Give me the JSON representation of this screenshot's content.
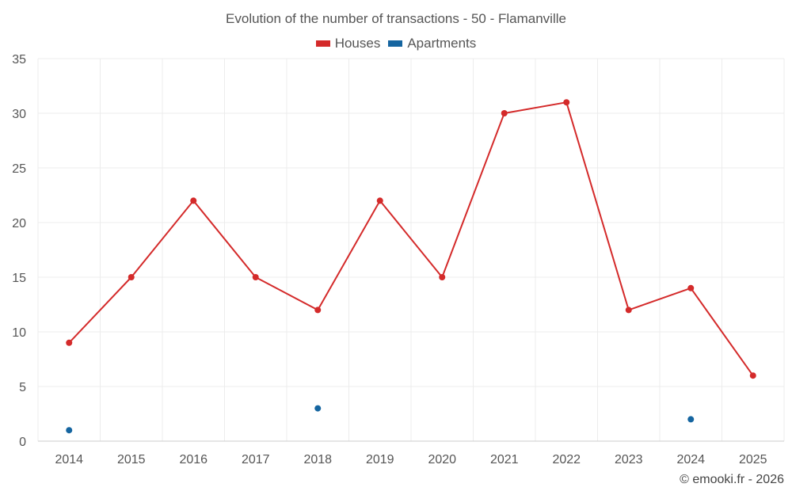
{
  "chart_data": {
    "type": "line",
    "title": "Evolution of the number of transactions - 50 - Flamanville",
    "categories": [
      "2014",
      "2015",
      "2016",
      "2017",
      "2018",
      "2019",
      "2020",
      "2021",
      "2022",
      "2023",
      "2024",
      "2025"
    ],
    "series": [
      {
        "name": "Houses",
        "color": "#d42a2a",
        "values": [
          9,
          15,
          22,
          15,
          12,
          22,
          15,
          30,
          31,
          12,
          14,
          6
        ]
      },
      {
        "name": "Apartments",
        "color": "#1565a0",
        "values": [
          1,
          null,
          null,
          null,
          3,
          null,
          null,
          null,
          null,
          null,
          2,
          null
        ]
      }
    ],
    "yticks": [
      0,
      5,
      10,
      15,
      20,
      25,
      30,
      35
    ],
    "ylim": [
      0,
      35
    ],
    "grid": true,
    "legend_position": "top-center"
  },
  "credit": "© emooki.fr - 2026"
}
